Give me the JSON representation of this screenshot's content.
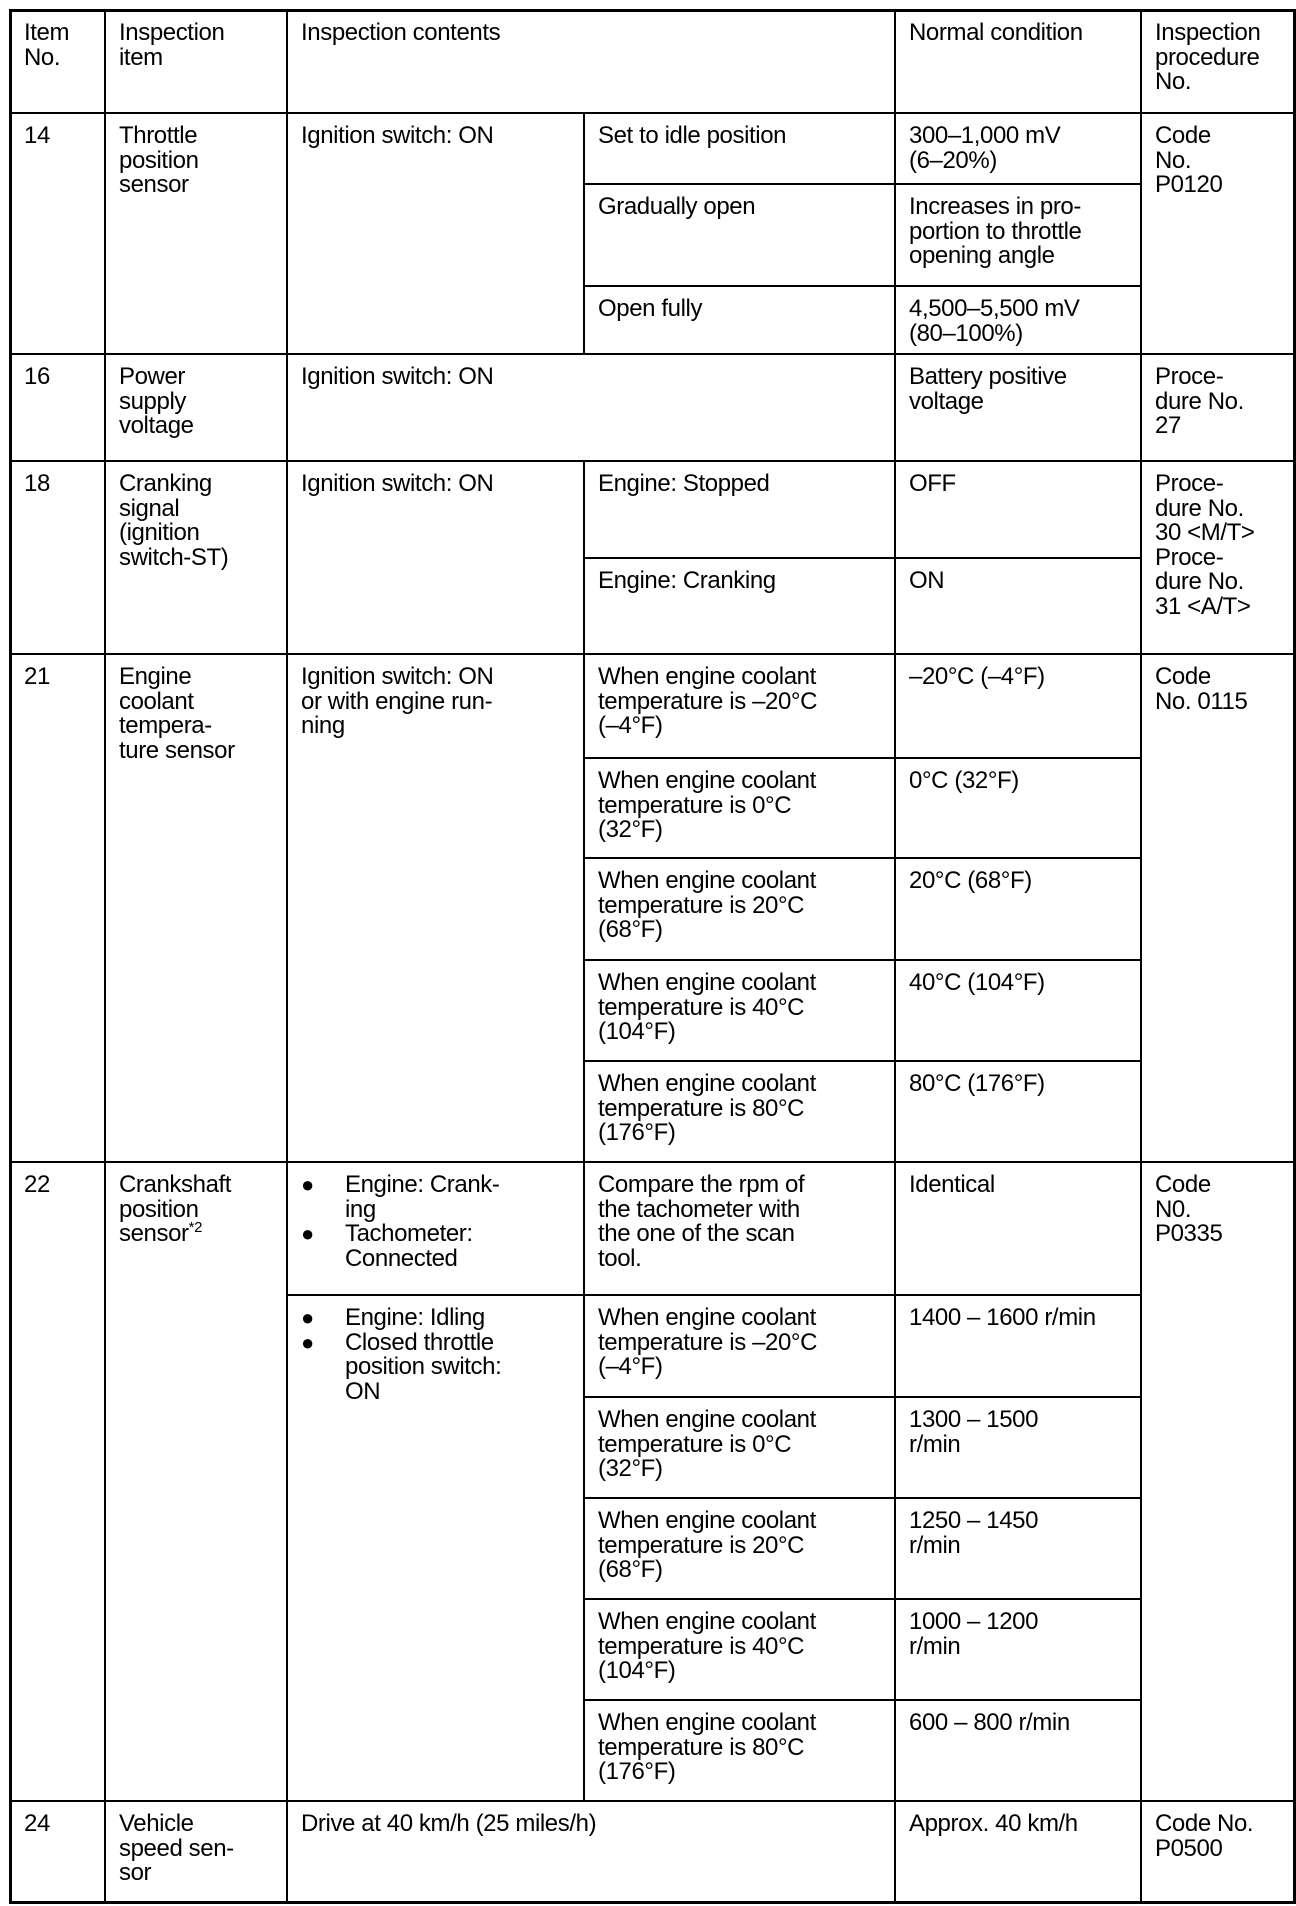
{
  "header": {
    "item_no": "Item\nNo.",
    "inspection_item": "Inspection\nitem",
    "inspection_contents": "Inspection contents",
    "normal_condition": "Normal condition",
    "procedure_no": "Inspection\nprocedure\nNo."
  },
  "rows": [
    {
      "item_no": "14",
      "item": "Throttle\nposition\nsensor",
      "condition": "Ignition switch: ON",
      "checks": [
        {
          "sub": "Set to idle position",
          "normal": "300–1,000 mV\n(6–20%)"
        },
        {
          "sub": "Gradually open",
          "normal": "Increases in pro-\nportion to throttle\nopening angle"
        },
        {
          "sub": "Open fully",
          "normal": "4,500–5,500 mV\n(80–100%)"
        }
      ],
      "procedure": "Code\nNo.\nP0120"
    },
    {
      "item_no": "16",
      "item": "Power\nsupply\nvoltage",
      "condition": "Ignition switch: ON",
      "normal": "Battery positive\nvoltage",
      "procedure": "Proce-\ndure No.\n27"
    },
    {
      "item_no": "18",
      "item": "Cranking\nsignal\n(ignition\nswitch-ST)",
      "condition": "Ignition switch: ON",
      "checks": [
        {
          "sub": "Engine: Stopped",
          "normal": "OFF"
        },
        {
          "sub": "Engine: Cranking",
          "normal": "ON"
        }
      ],
      "procedure": "Proce-\ndure No.\n30 <M/T>\nProce-\ndure No.\n31 <A/T>"
    },
    {
      "item_no": "21",
      "item": "Engine\ncoolant\ntempera-\nture sensor",
      "condition": "Ignition switch: ON\nor with engine run-\nning",
      "checks": [
        {
          "sub": "When engine coolant\ntemperature is –20°C\n(–4°F)",
          "normal": "–20°C (–4°F)"
        },
        {
          "sub": "When engine coolant\ntemperature is 0°C\n(32°F)",
          "normal": "0°C (32°F)"
        },
        {
          "sub": "When engine coolant\ntemperature is 20°C\n(68°F)",
          "normal": "20°C (68°F)"
        },
        {
          "sub": "When engine coolant\ntemperature is 40°C\n(104°F)",
          "normal": "40°C (104°F)"
        },
        {
          "sub": "When engine coolant\ntemperature is 80°C\n(176°F)",
          "normal": "80°C (176°F)"
        }
      ],
      "procedure": "Code\nNo. 0115"
    },
    {
      "item_no": "22",
      "item": "Crankshaft\nposition\nsensor",
      "item_footnote": "*2",
      "conditions": [
        {
          "bullets": [
            "Engine: Crank-\ning",
            "Tachometer:\nConnected"
          ]
        },
        {
          "bullets": [
            "Engine: Idling",
            "Closed throttle\nposition switch:\nON"
          ]
        }
      ],
      "checks": [
        {
          "sub": "Compare the rpm of\nthe tachometer with\nthe one of the scan\ntool.",
          "normal": "Identical"
        },
        {
          "sub": "When engine coolant\ntemperature is –20°C\n(–4°F)",
          "normal": "1400 – 1600 r/min"
        },
        {
          "sub": "When engine coolant\ntemperature is 0°C\n(32°F)",
          "normal": "1300 – 1500\nr/min"
        },
        {
          "sub": "When engine coolant\ntemperature is 20°C\n(68°F)",
          "normal": "1250 – 1450\nr/min"
        },
        {
          "sub": "When engine coolant\ntemperature is 40°C\n(104°F)",
          "normal": "1000 – 1200\nr/min"
        },
        {
          "sub": "When engine coolant\ntemperature is 80°C\n(176°F)",
          "normal": "600 – 800 r/min"
        }
      ],
      "procedure": "Code\nN0.\nP0335"
    },
    {
      "item_no": "24",
      "item": "Vehicle\nspeed sen-\nsor",
      "condition": "Drive at 40 km/h (25 miles/h)",
      "normal": "Approx. 40 km/h",
      "procedure": "Code No.\nP0500"
    }
  ]
}
